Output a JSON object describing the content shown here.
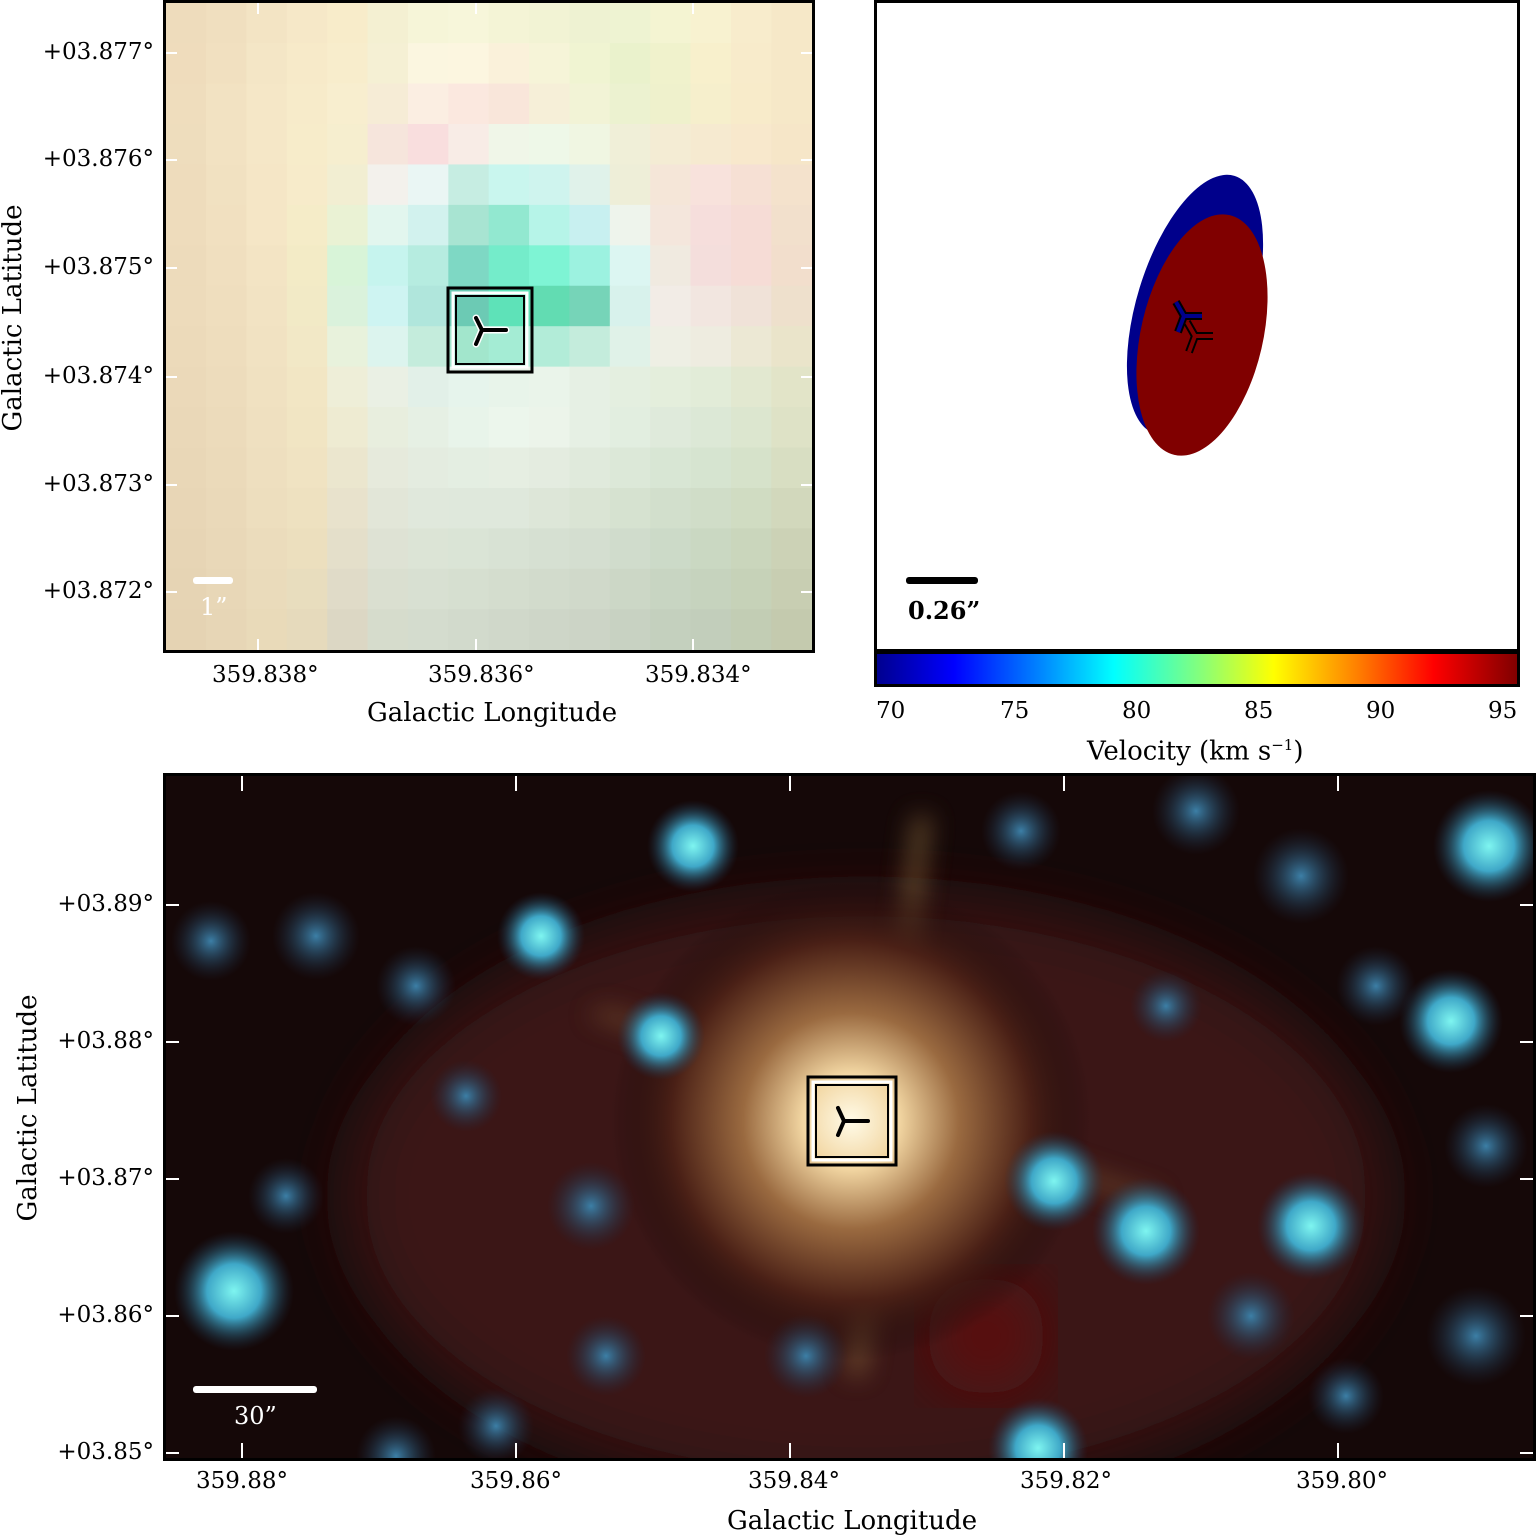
{
  "panel_a": {
    "ylabel": "Galactic Latitude",
    "xlabel": "Galactic Longitude",
    "yticks": [
      "+03.877°",
      "+03.876°",
      "+03.875°",
      "+03.874°",
      "+03.873°",
      "+03.872°"
    ],
    "xticks": [
      "359.838°",
      "359.836°",
      "359.834°"
    ],
    "scalebar": "1”",
    "scalebar_color": "#ffffff"
  },
  "panel_b": {
    "scalebar": "0.26”",
    "colorbar_label": "Velocity (km s",
    "colorbar_label_sup": "−1",
    "colorbar_label_end": ")",
    "colorbar_ticks": [
      "70",
      "75",
      "80",
      "85",
      "90",
      "95"
    ],
    "ellipse_colors": [
      "#00008b",
      "#800000"
    ]
  },
  "panel_c": {
    "ylabel": "Galactic Latitude",
    "xlabel": "Galactic Longitude",
    "yticks": [
      "+03.89°",
      "+03.88°",
      "+03.87°",
      "+03.86°",
      "+03.85°"
    ],
    "xticks": [
      "359.88°",
      "359.86°",
      "359.84°",
      "359.82°",
      "359.80°"
    ],
    "scalebar": "30”",
    "scalebar_color": "#ffffff"
  }
}
